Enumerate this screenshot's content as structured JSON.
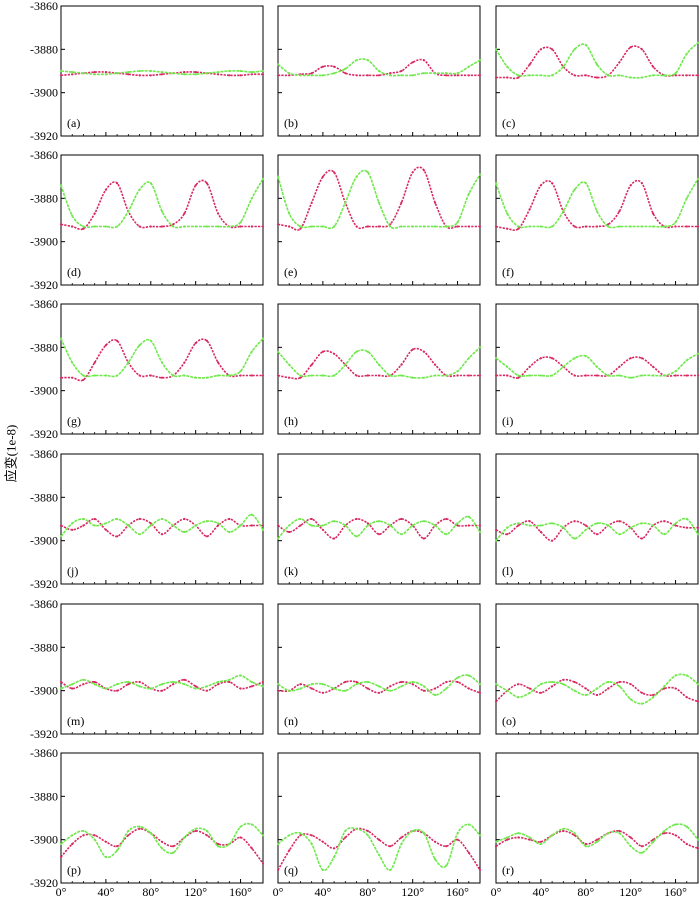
{
  "colors": {
    "red_series": "#d8285f",
    "green_series": "#6ee84a",
    "frame": "#000000"
  },
  "chart_data": {
    "type": "line",
    "layout": "grid 6x3 small multiples, shared axes",
    "ylabel": "应变(1e-8)",
    "xlabel": "",
    "y_ticks": [
      "-3860",
      "-3880",
      "-3900",
      "-3920"
    ],
    "x_ticks": [
      "0°",
      "40°",
      "80°",
      "120°",
      "160°"
    ],
    "xlim": [
      0,
      180
    ],
    "ylim": [
      -3920,
      -3860
    ],
    "grid": false,
    "x_step_deg": 10,
    "panels": [
      {
        "label": "(a)",
        "series": [
          {
            "values": [
              -3892,
              -3891.5,
              -3891,
              -3890.5,
              -3890.5,
              -3891,
              -3891.5,
              -3892,
              -3892,
              -3891.5,
              -3891,
              -3890.5,
              -3890.5,
              -3891,
              -3891.5,
              -3892,
              -3892,
              -3891.5,
              -3891.5
            ]
          },
          {
            "values": [
              -3890,
              -3890.5,
              -3891,
              -3891.5,
              -3891.5,
              -3891,
              -3890.5,
              -3890,
              -3890,
              -3890.5,
              -3891,
              -3891.5,
              -3891.5,
              -3891,
              -3890.5,
              -3890,
              -3890,
              -3890.5,
              -3890
            ]
          }
        ]
      },
      {
        "label": "(b)",
        "series": [
          {
            "values": [
              -3892,
              -3892,
              -3891.5,
              -3891,
              -3888,
              -3888,
              -3891,
              -3892,
              -3892,
              -3892,
              -3891,
              -3890,
              -3886,
              -3885,
              -3891,
              -3892,
              -3892,
              -3892,
              -3892
            ]
          },
          {
            "values": [
              -3887,
              -3891,
              -3892,
              -3892,
              -3892,
              -3891,
              -3889,
              -3885,
              -3885,
              -3890,
              -3892,
              -3892,
              -3892,
              -3891,
              -3891,
              -3891,
              -3891,
              -3888,
              -3885
            ]
          }
        ]
      },
      {
        "label": "(c)",
        "series": [
          {
            "values": [
              -3893,
              -3893,
              -3893,
              -3887,
              -3880,
              -3880,
              -3888,
              -3892,
              -3892,
              -3893,
              -3892,
              -3886,
              -3879,
              -3880,
              -3888,
              -3892,
              -3892,
              -3892,
              -3892
            ]
          },
          {
            "values": [
              -3880,
              -3888,
              -3892,
              -3892,
              -3892,
              -3892,
              -3888,
              -3880,
              -3878,
              -3887,
              -3892,
              -3892,
              -3893,
              -3893,
              -3892,
              -3892,
              -3891,
              -3882,
              -3877
            ]
          }
        ]
      },
      {
        "label": "(d)",
        "series": [
          {
            "values": [
              -3892,
              -3893,
              -3894,
              -3887,
              -3876,
              -3873,
              -3886,
              -3893,
              -3893,
              -3893,
              -3892,
              -3887,
              -3874,
              -3873,
              -3887,
              -3893,
              -3893,
              -3893,
              -3893
            ]
          },
          {
            "values": [
              -3874,
              -3888,
              -3893,
              -3893,
              -3893,
              -3893,
              -3886,
              -3876,
              -3873,
              -3886,
              -3893,
              -3893,
              -3893,
              -3893,
              -3893,
              -3893,
              -3891,
              -3880,
              -3871
            ]
          }
        ]
      },
      {
        "label": "(e)",
        "series": [
          {
            "values": [
              -3892,
              -3893,
              -3894,
              -3882,
              -3870,
              -3868,
              -3882,
              -3893,
              -3893,
              -3893,
              -3892,
              -3882,
              -3868,
              -3867,
              -3882,
              -3893,
              -3893,
              -3893,
              -3893
            ]
          },
          {
            "values": [
              -3870,
              -3887,
              -3893,
              -3893,
              -3893,
              -3893,
              -3882,
              -3870,
              -3868,
              -3882,
              -3893,
              -3893,
              -3893,
              -3893,
              -3893,
              -3893,
              -3891,
              -3878,
              -3869
            ]
          }
        ]
      },
      {
        "label": "(f)",
        "series": [
          {
            "values": [
              -3893,
              -3894,
              -3894,
              -3885,
              -3874,
              -3873,
              -3886,
              -3893,
              -3893,
              -3893,
              -3892,
              -3886,
              -3874,
              -3873,
              -3887,
              -3893,
              -3893,
              -3893,
              -3893
            ]
          },
          {
            "values": [
              -3873,
              -3887,
              -3893,
              -3893,
              -3893,
              -3893,
              -3886,
              -3876,
              -3873,
              -3886,
              -3893,
              -3893,
              -3893,
              -3893,
              -3893,
              -3893,
              -3891,
              -3880,
              -3871
            ]
          }
        ]
      },
      {
        "label": "(g)",
        "series": [
          {
            "values": [
              -3894,
              -3894,
              -3895,
              -3887,
              -3879,
              -3877,
              -3887,
              -3893,
              -3893,
              -3894,
              -3893,
              -3887,
              -3878,
              -3877,
              -3887,
              -3893,
              -3893,
              -3893,
              -3893
            ]
          },
          {
            "values": [
              -3876,
              -3887,
              -3893,
              -3893,
              -3893,
              -3893,
              -3887,
              -3879,
              -3877,
              -3887,
              -3893,
              -3893,
              -3894,
              -3894,
              -3893,
              -3893,
              -3891,
              -3882,
              -3876
            ]
          }
        ]
      },
      {
        "label": "(h)",
        "series": [
          {
            "values": [
              -3893,
              -3894,
              -3894,
              -3888,
              -3882,
              -3883,
              -3888,
              -3893,
              -3893,
              -3893,
              -3893,
              -3888,
              -3881,
              -3882,
              -3888,
              -3893,
              -3893,
              -3893,
              -3893
            ]
          },
          {
            "values": [
              -3882,
              -3888,
              -3893,
              -3893,
              -3893,
              -3893,
              -3888,
              -3882,
              -3882,
              -3888,
              -3893,
              -3893,
              -3894,
              -3894,
              -3893,
              -3893,
              -3891,
              -3885,
              -3880
            ]
          }
        ]
      },
      {
        "label": "(i)",
        "series": [
          {
            "values": [
              -3893,
              -3893,
              -3894,
              -3889,
              -3885,
              -3885,
              -3889,
              -3893,
              -3893,
              -3893,
              -3893,
              -3889,
              -3885,
              -3885,
              -3889,
              -3893,
              -3893,
              -3893,
              -3893
            ]
          },
          {
            "values": [
              -3885,
              -3889,
              -3893,
              -3893,
              -3893,
              -3893,
              -3889,
              -3885,
              -3884,
              -3889,
              -3893,
              -3893,
              -3894,
              -3893,
              -3893,
              -3893,
              -3891,
              -3886,
              -3883
            ]
          }
        ]
      },
      {
        "label": "(j)",
        "series": [
          {
            "values": [
              -3893,
              -3895,
              -3893,
              -3890,
              -3895,
              -3898,
              -3893,
              -3890,
              -3892,
              -3897,
              -3893,
              -3890,
              -3893,
              -3898,
              -3893,
              -3890,
              -3893,
              -3893,
              -3893
            ]
          },
          {
            "values": [
              -3898,
              -3892,
              -3890,
              -3893,
              -3892,
              -3890,
              -3893,
              -3897,
              -3893,
              -3890,
              -3893,
              -3896,
              -3893,
              -3891,
              -3892,
              -3896,
              -3893,
              -3888,
              -3895
            ]
          }
        ]
      },
      {
        "label": "(k)",
        "series": [
          {
            "values": [
              -3893,
              -3896,
              -3893,
              -3890,
              -3895,
              -3899,
              -3893,
              -3890,
              -3892,
              -3897,
              -3893,
              -3890,
              -3893,
              -3899,
              -3893,
              -3890,
              -3893,
              -3893,
              -3893
            ]
          },
          {
            "values": [
              -3899,
              -3893,
              -3890,
              -3893,
              -3893,
              -3891,
              -3893,
              -3898,
              -3893,
              -3891,
              -3893,
              -3897,
              -3893,
              -3891,
              -3893,
              -3897,
              -3892,
              -3889,
              -3896
            ]
          }
        ]
      },
      {
        "label": "(l)",
        "series": [
          {
            "values": [
              -3895,
              -3897,
              -3893,
              -3891,
              -3896,
              -3900,
              -3894,
              -3891,
              -3893,
              -3897,
              -3893,
              -3891,
              -3894,
              -3899,
              -3893,
              -3891,
              -3893,
              -3894,
              -3894
            ]
          },
          {
            "values": [
              -3900,
              -3894,
              -3892,
              -3893,
              -3893,
              -3892,
              -3894,
              -3899,
              -3895,
              -3892,
              -3893,
              -3897,
              -3894,
              -3892,
              -3893,
              -3897,
              -3892,
              -3890,
              -3897
            ]
          }
        ]
      },
      {
        "label": "(m)",
        "series": [
          {
            "values": [
              -3896,
              -3899,
              -3897,
              -3896,
              -3899,
              -3900,
              -3897,
              -3896,
              -3899,
              -3900,
              -3897,
              -3895,
              -3898,
              -3900,
              -3897,
              -3896,
              -3899,
              -3898,
              -3896
            ]
          },
          {
            "values": [
              -3899,
              -3897,
              -3895,
              -3897,
              -3899,
              -3897,
              -3896,
              -3898,
              -3899,
              -3897,
              -3896,
              -3897,
              -3899,
              -3898,
              -3896,
              -3895,
              -3893,
              -3896,
              -3898
            ]
          }
        ]
      },
      {
        "label": "(n)",
        "series": [
          {
            "values": [
              -3900,
              -3900,
              -3897,
              -3899,
              -3901,
              -3899,
              -3896,
              -3896,
              -3899,
              -3901,
              -3898,
              -3896,
              -3897,
              -3900,
              -3899,
              -3896,
              -3896,
              -3899,
              -3901
            ]
          },
          {
            "values": [
              -3897,
              -3900,
              -3899,
              -3897,
              -3897,
              -3899,
              -3900,
              -3897,
              -3896,
              -3898,
              -3900,
              -3898,
              -3896,
              -3898,
              -3902,
              -3899,
              -3894,
              -3893,
              -3897
            ]
          }
        ]
      },
      {
        "label": "(o)",
        "series": [
          {
            "values": [
              -3905,
              -3900,
              -3897,
              -3899,
              -3901,
              -3898,
              -3895,
              -3896,
              -3899,
              -3902,
              -3899,
              -3896,
              -3897,
              -3901,
              -3902,
              -3899,
              -3899,
              -3903,
              -3905
            ]
          },
          {
            "values": [
              -3897,
              -3900,
              -3903,
              -3901,
              -3897,
              -3896,
              -3897,
              -3900,
              -3902,
              -3899,
              -3896,
              -3898,
              -3904,
              -3906,
              -3903,
              -3898,
              -3893,
              -3893,
              -3897
            ]
          }
        ]
      },
      {
        "label": "(p)",
        "series": [
          {
            "values": [
              -3908,
              -3902,
              -3898,
              -3898,
              -3901,
              -3903,
              -3898,
              -3895,
              -3897,
              -3901,
              -3903,
              -3899,
              -3896,
              -3898,
              -3902,
              -3902,
              -3899,
              -3904,
              -3911
            ]
          },
          {
            "values": [
              -3902,
              -3898,
              -3896,
              -3900,
              -3908,
              -3905,
              -3896,
              -3894,
              -3897,
              -3904,
              -3906,
              -3899,
              -3895,
              -3896,
              -3903,
              -3902,
              -3894,
              -3893,
              -3898
            ]
          }
        ]
      },
      {
        "label": "(q)",
        "series": [
          {
            "values": [
              -3914,
              -3905,
              -3898,
              -3898,
              -3901,
              -3904,
              -3899,
              -3895,
              -3896,
              -3900,
              -3903,
              -3899,
              -3896,
              -3897,
              -3901,
              -3903,
              -3900,
              -3906,
              -3914
            ]
          },
          {
            "values": [
              -3902,
              -3898,
              -3897,
              -3902,
              -3914,
              -3908,
              -3896,
              -3895,
              -3898,
              -3907,
              -3914,
              -3902,
              -3896,
              -3897,
              -3909,
              -3912,
              -3897,
              -3893,
              -3898
            ]
          }
        ]
      },
      {
        "label": "(r)",
        "series": [
          {
            "values": [
              -3903,
              -3900,
              -3899,
              -3900,
              -3901,
              -3898,
              -3896,
              -3898,
              -3902,
              -3900,
              -3897,
              -3896,
              -3899,
              -3903,
              -3900,
              -3897,
              -3898,
              -3902,
              -3904
            ]
          },
          {
            "values": [
              -3901,
              -3899,
              -3897,
              -3899,
              -3902,
              -3898,
              -3895,
              -3897,
              -3903,
              -3901,
              -3897,
              -3897,
              -3903,
              -3906,
              -3901,
              -3896,
              -3893,
              -3894,
              -3900
            ]
          }
        ]
      }
    ]
  }
}
